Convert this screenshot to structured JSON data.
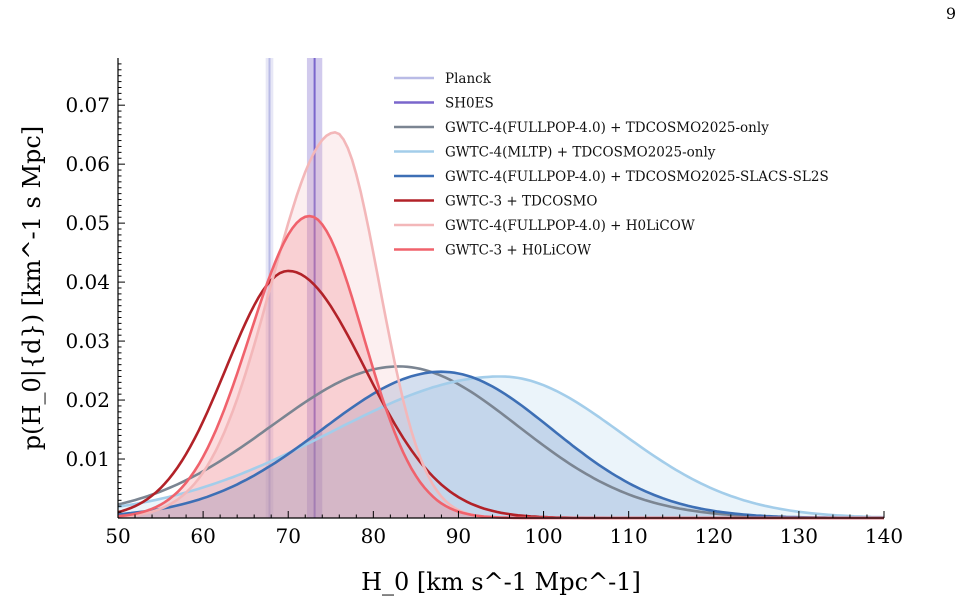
{
  "page_number": "9",
  "chart_data": {
    "type": "line",
    "xlabel": "H_0 [km s^-1 Mpc^-1]",
    "ylabel": "p(H_0|{d}) [km^-1 s Mpc]",
    "xlim": [
      50,
      140
    ],
    "ylim": [
      0,
      0.078
    ],
    "x_ticks": [
      "50",
      "60",
      "70",
      "80",
      "90",
      "100",
      "110",
      "120",
      "130",
      "140"
    ],
    "y_ticks": [
      "0.01",
      "0.02",
      "0.03",
      "0.04",
      "0.05",
      "0.06",
      "0.07"
    ],
    "legend_position": "top-center",
    "bands": [
      {
        "name": "Planck",
        "center": 67.8,
        "width": 0.9,
        "color": "#b9bbe6"
      },
      {
        "name": "SH0ES",
        "center": 73.1,
        "width": 1.8,
        "color": "#7a66cc"
      }
    ],
    "series": [
      {
        "name": "GWTC-4(FULLPOP-4.0) + TDCOSMO2025-only",
        "color": "#7b8592",
        "peak_x": 83,
        "peak_y": 0.0257,
        "sigma_left": 15,
        "sigma_right": 14,
        "fill": false
      },
      {
        "name": "GWTC-4(MLTP) + TDCOSMO2025-only",
        "color": "#a3cdea",
        "peak_x": 95,
        "peak_y": 0.024,
        "sigma_left": 20,
        "sigma_right": 14,
        "fill": true
      },
      {
        "name": "GWTC-4(FULLPOP-4.0) + TDCOSMO2025-SLACS-SL2S",
        "color": "#3d6fb5",
        "peak_x": 88,
        "peak_y": 0.0248,
        "sigma_left": 14,
        "sigma_right": 13,
        "fill": true
      },
      {
        "name": "GWTC-3 + TDCOSMO",
        "color": "#b22228",
        "peak_x": 70,
        "peak_y": 0.0419,
        "sigma_left": 7.3,
        "sigma_right": 9,
        "fill": false
      },
      {
        "name": "GWTC-4(FULLPOP-4.0) + H0LiCOW",
        "color": "#f3b7b9",
        "peak_x": 75.5,
        "peak_y": 0.0654,
        "sigma_left": 7.5,
        "sigma_right": 5.2,
        "fill": true
      },
      {
        "name": "GWTC-3 + H0LiCOW",
        "color": "#f0626c",
        "peak_x": 72.5,
        "peak_y": 0.0512,
        "sigma_left": 7,
        "sigma_right": 6.3,
        "fill": true
      }
    ]
  }
}
